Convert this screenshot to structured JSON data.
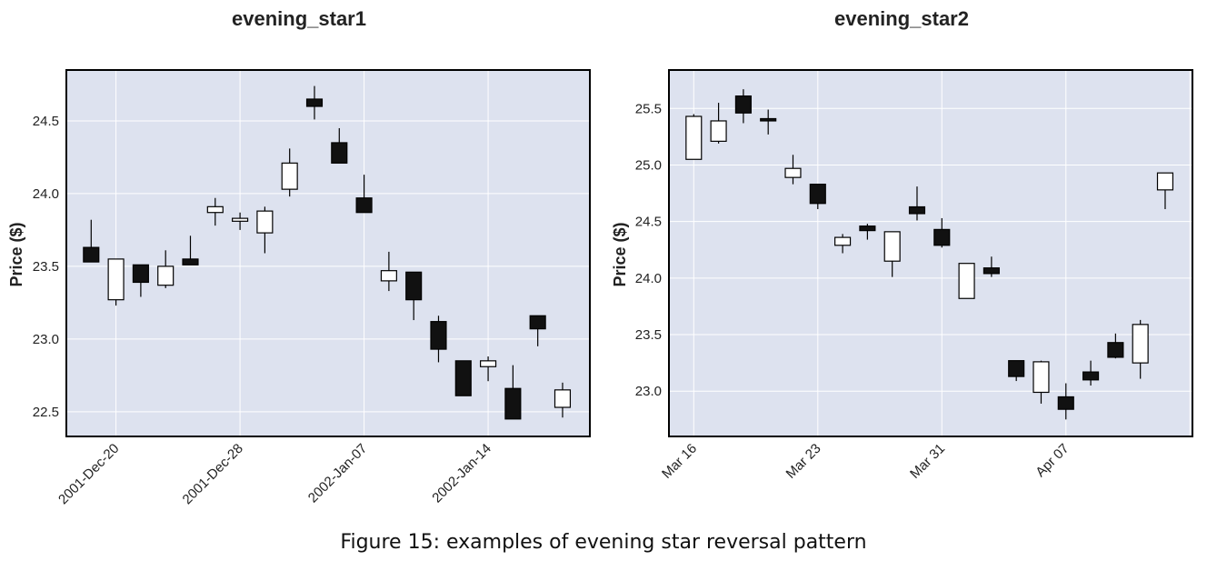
{
  "caption": "Figure 15: examples of evening star reversal pattern",
  "colors": {
    "plot_bg": "#dde2ef",
    "grid": "#ffffff",
    "up_fill": "#ffffff",
    "down_fill": "#111111",
    "edge": "#000000"
  },
  "chart_data": [
    {
      "type": "candlestick",
      "title": "evening_star1",
      "xlabel": "",
      "ylabel": "Price ($)",
      "ylim": [
        22.33,
        24.85
      ],
      "yticks": [
        "22.5",
        "23.0",
        "23.5",
        "24.0",
        "24.5"
      ],
      "ytick_values": [
        22.5,
        23.0,
        23.5,
        24.0,
        24.5
      ],
      "xlim": [
        -1,
        20.1
      ],
      "xticks": [
        "2001-Dec-20",
        "2001-Dec-28",
        "2002-Jan-07",
        "2002-Jan-14"
      ],
      "xtick_positions": [
        1,
        6,
        11,
        16
      ],
      "grid": true,
      "candles": [
        {
          "open": 23.63,
          "high": 23.82,
          "low": 23.53,
          "close": 23.53
        },
        {
          "open": 23.27,
          "high": 23.55,
          "low": 23.23,
          "close": 23.55
        },
        {
          "open": 23.51,
          "high": 23.51,
          "low": 23.29,
          "close": 23.39
        },
        {
          "open": 23.37,
          "high": 23.61,
          "low": 23.35,
          "close": 23.5
        },
        {
          "open": 23.55,
          "high": 23.71,
          "low": 23.51,
          "close": 23.51
        },
        {
          "open": 23.87,
          "high": 23.97,
          "low": 23.78,
          "close": 23.91
        },
        {
          "open": 23.81,
          "high": 23.87,
          "low": 23.75,
          "close": 23.83
        },
        {
          "open": 23.73,
          "high": 23.91,
          "low": 23.59,
          "close": 23.88
        },
        {
          "open": 24.03,
          "high": 24.31,
          "low": 23.98,
          "close": 24.21
        },
        {
          "open": 24.65,
          "high": 24.74,
          "low": 24.51,
          "close": 24.6
        },
        {
          "open": 24.35,
          "high": 24.45,
          "low": 24.21,
          "close": 24.21
        },
        {
          "open": 23.97,
          "high": 24.13,
          "low": 23.87,
          "close": 23.87
        },
        {
          "open": 23.4,
          "high": 23.6,
          "low": 23.33,
          "close": 23.47
        },
        {
          "open": 23.46,
          "high": 23.46,
          "low": 23.13,
          "close": 23.27
        },
        {
          "open": 23.12,
          "high": 23.16,
          "low": 22.84,
          "close": 22.93
        },
        {
          "open": 22.85,
          "high": 22.85,
          "low": 22.61,
          "close": 22.61
        },
        {
          "open": 22.81,
          "high": 22.88,
          "low": 22.71,
          "close": 22.85
        },
        {
          "open": 22.66,
          "high": 22.82,
          "low": 22.45,
          "close": 22.45
        },
        {
          "open": 23.16,
          "high": 23.16,
          "low": 22.95,
          "close": 23.07
        },
        {
          "open": 22.53,
          "high": 22.7,
          "low": 22.46,
          "close": 22.65
        }
      ]
    },
    {
      "type": "candlestick",
      "title": "evening_star2",
      "xlabel": "",
      "ylabel": "Price ($)",
      "ylim": [
        22.6,
        25.84
      ],
      "yticks": [
        "23.0",
        "23.5",
        "24.0",
        "24.5",
        "25.0",
        "25.5"
      ],
      "ytick_values": [
        23.0,
        23.5,
        24.0,
        24.5,
        25.0,
        25.5
      ],
      "xlim": [
        -1,
        20.1
      ],
      "xticks": [
        "Mar 16",
        "Mar 23",
        "Mar 31",
        "Apr 07"
      ],
      "xtick_positions": [
        0,
        5,
        10,
        15
      ],
      "grid": true,
      "candles": [
        {
          "open": 25.05,
          "high": 25.45,
          "low": 25.05,
          "close": 25.43
        },
        {
          "open": 25.21,
          "high": 25.55,
          "low": 25.19,
          "close": 25.39
        },
        {
          "open": 25.61,
          "high": 25.67,
          "low": 25.37,
          "close": 25.46
        },
        {
          "open": 25.41,
          "high": 25.49,
          "low": 25.27,
          "close": 25.39
        },
        {
          "open": 24.89,
          "high": 25.09,
          "low": 24.83,
          "close": 24.97
        },
        {
          "open": 24.83,
          "high": 24.83,
          "low": 24.61,
          "close": 24.66
        },
        {
          "open": 24.29,
          "high": 24.39,
          "low": 24.22,
          "close": 24.36
        },
        {
          "open": 24.46,
          "high": 24.48,
          "low": 24.34,
          "close": 24.42
        },
        {
          "open": 24.15,
          "high": 24.41,
          "low": 24.01,
          "close": 24.41
        },
        {
          "open": 24.63,
          "high": 24.81,
          "low": 24.51,
          "close": 24.57
        },
        {
          "open": 24.43,
          "high": 24.53,
          "low": 24.27,
          "close": 24.29
        },
        {
          "open": 23.82,
          "high": 24.13,
          "low": 23.82,
          "close": 24.13
        },
        {
          "open": 24.09,
          "high": 24.19,
          "low": 24.01,
          "close": 24.04
        },
        {
          "open": 23.27,
          "high": 23.27,
          "low": 23.09,
          "close": 23.13
        },
        {
          "open": 22.99,
          "high": 23.27,
          "low": 22.89,
          "close": 23.26
        },
        {
          "open": 22.95,
          "high": 23.07,
          "low": 22.75,
          "close": 22.84
        },
        {
          "open": 23.17,
          "high": 23.27,
          "low": 23.05,
          "close": 23.1
        },
        {
          "open": 23.43,
          "high": 23.51,
          "low": 23.29,
          "close": 23.3
        },
        {
          "open": 23.25,
          "high": 23.63,
          "low": 23.11,
          "close": 23.59
        },
        {
          "open": 24.78,
          "high": 24.93,
          "low": 24.61,
          "close": 24.93
        }
      ]
    }
  ]
}
